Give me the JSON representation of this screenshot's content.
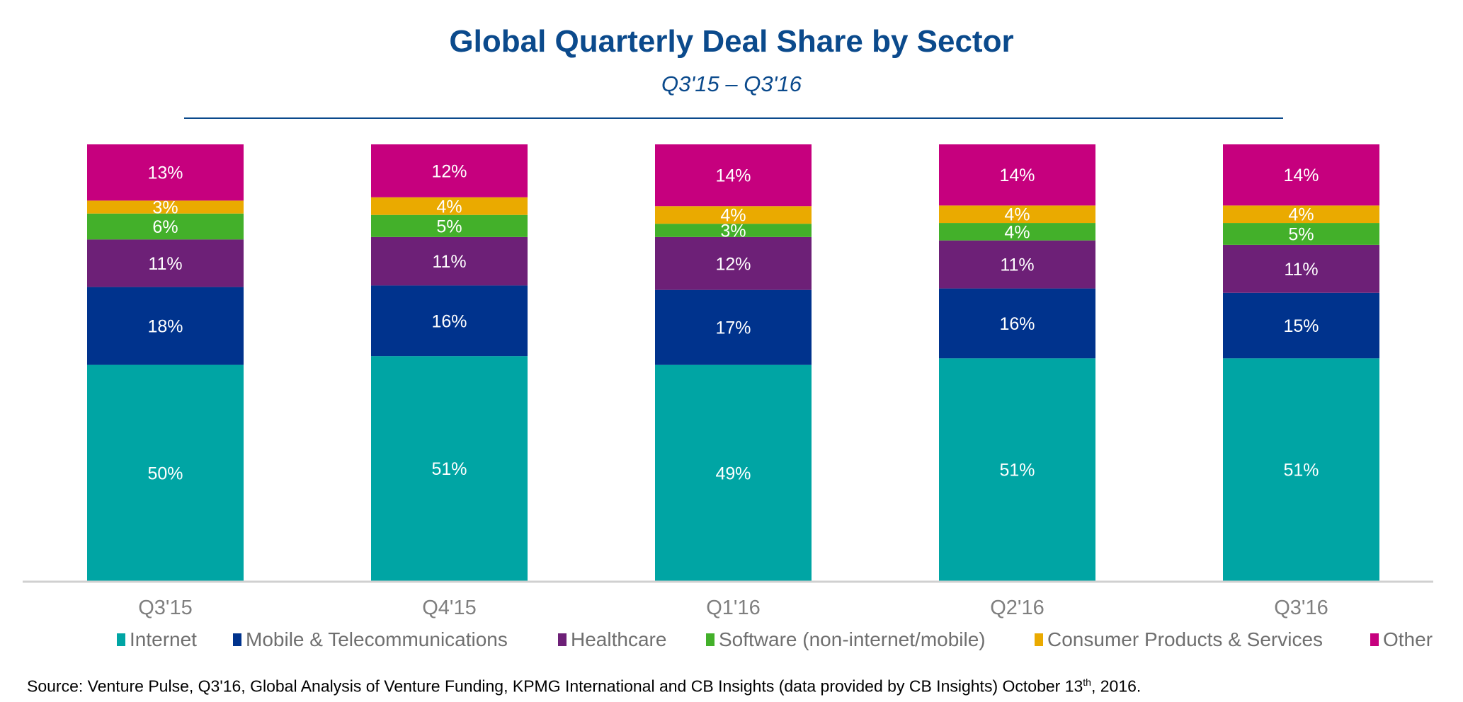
{
  "chart_data": {
    "type": "bar",
    "stacked": true,
    "title": "Global Quarterly Deal Share by Sector",
    "subtitle": "Q3'15 – Q3'16",
    "categories": [
      "Q3'15",
      "Q4'15",
      "Q1'16",
      "Q2'16",
      "Q3'16"
    ],
    "series": [
      {
        "name": "Internet",
        "color": "#00A5A4",
        "values": [
          50,
          51,
          49,
          51,
          51
        ]
      },
      {
        "name": "Mobile & Telecommunications",
        "color": "#00338D",
        "values": [
          18,
          16,
          17,
          16,
          15
        ]
      },
      {
        "name": "Healthcare",
        "color": "#6D2077",
        "values": [
          11,
          11,
          12,
          11,
          11
        ]
      },
      {
        "name": "Software (non-internet/mobile)",
        "color": "#43B02A",
        "values": [
          6,
          5,
          3,
          4,
          5
        ]
      },
      {
        "name": "Consumer Products & Services",
        "color": "#EAAA00",
        "values": [
          3,
          4,
          4,
          4,
          4
        ]
      },
      {
        "name": "Other",
        "color": "#C6007E",
        "values": [
          13,
          12,
          14,
          14,
          14
        ]
      }
    ],
    "value_suffix": "%",
    "ylim": [
      0,
      100
    ],
    "grid": false,
    "legend_position": "bottom",
    "xlabel": "",
    "ylabel": ""
  },
  "source": {
    "text_before": "Source: Venture Pulse, Q3'16, Global Analysis of Venture Funding, KPMG International and CB Insights (data provided by CB Insights) October 13",
    "superscript": "th",
    "text_after": ", 2016."
  }
}
